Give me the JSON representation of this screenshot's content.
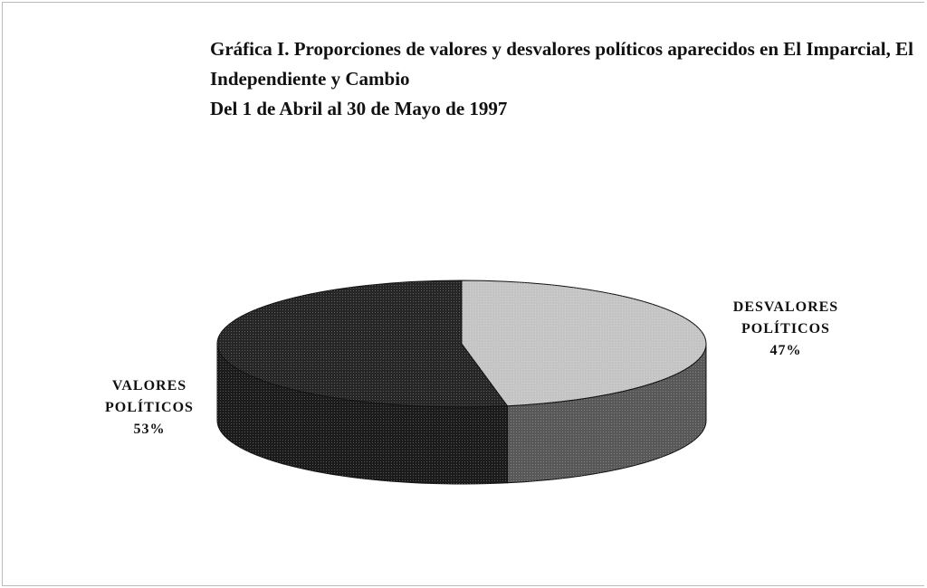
{
  "chart_data": {
    "type": "pie",
    "title": "Gráfica I. Proporciones de valores y desvalores políticos aparecidos en El Imparcial, El Independiente y Cambio",
    "subtitle": "Del 1 de Abril al 30 de Mayo de 1997",
    "categories": [
      "VALORES POLÍTICOS",
      "DESVALORES POLÍTICOS"
    ],
    "values": [
      53,
      47
    ],
    "value_labels": [
      "53%",
      "47%"
    ],
    "colors": [
      "#262626",
      "#c4c4c4"
    ]
  }
}
